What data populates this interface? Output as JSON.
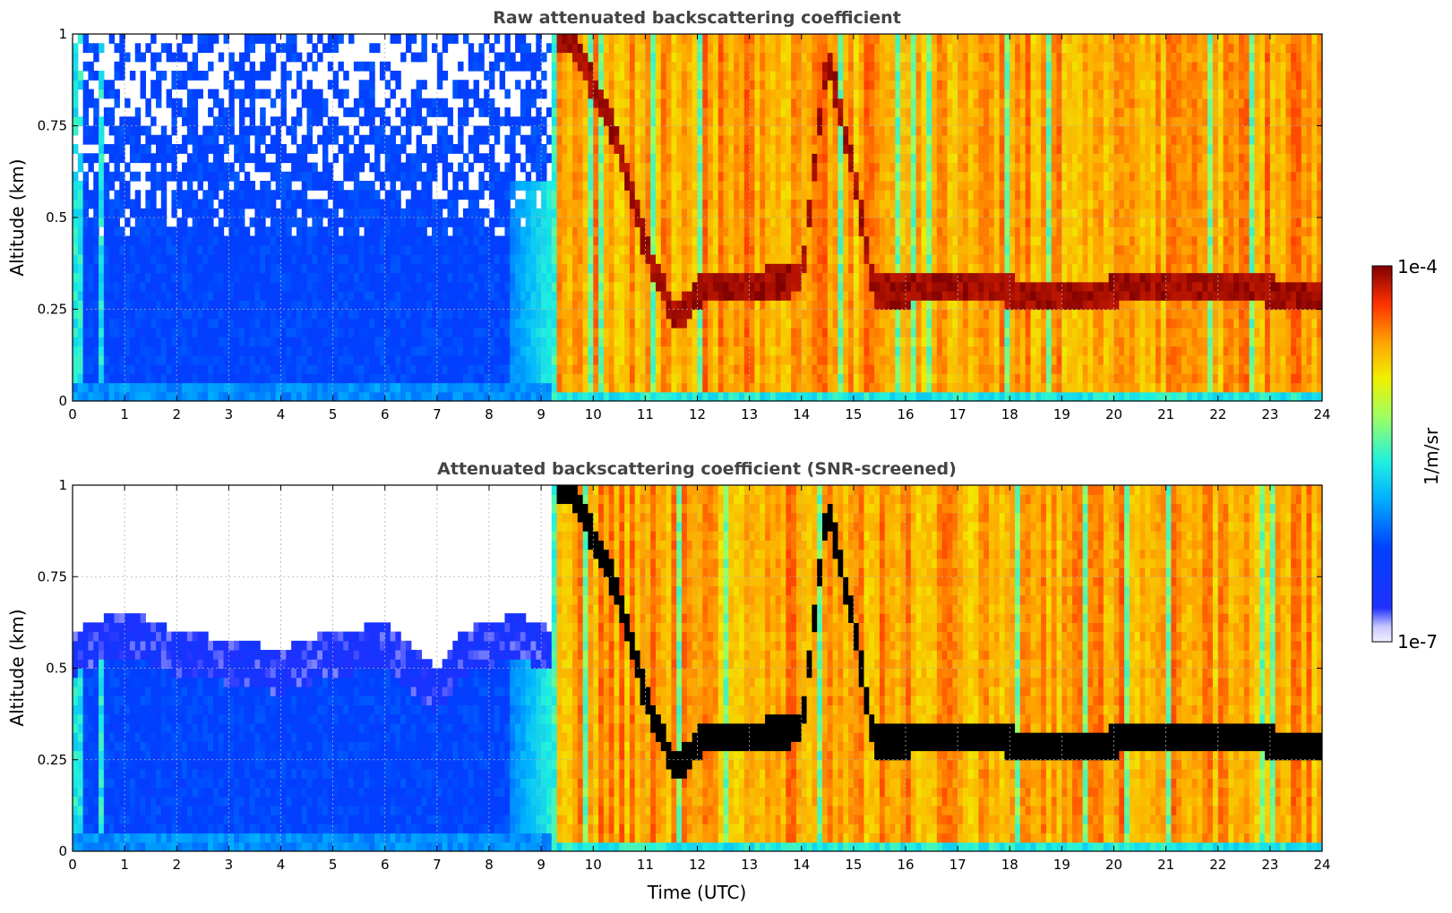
{
  "chart_data": [
    {
      "type": "heatmap",
      "id": "raw",
      "title": "Raw attenuated backscattering coefficient",
      "ylabel": "Altitude (km)",
      "xlabel": "",
      "xlim": [
        0,
        24
      ],
      "ylim": [
        0,
        1
      ],
      "xticks": [
        "0",
        "1",
        "2",
        "3",
        "4",
        "5",
        "6",
        "7",
        "8",
        "9",
        "10",
        "11",
        "12",
        "13",
        "14",
        "15",
        "16",
        "17",
        "18",
        "19",
        "20",
        "21",
        "22",
        "23",
        "24"
      ],
      "yticks": [
        "0",
        "0.25",
        "0.5",
        "0.75",
        "1"
      ],
      "ytick_values": [
        0,
        0.25,
        0.5,
        0.75,
        1
      ],
      "grid": true,
      "regimes": [
        {
          "t_start": 0,
          "t_end": 9.3,
          "description": "noise-dominated, low backscatter (blue) below ~0.4 km, speckled above",
          "log10_beta_near_surface": -6.4
        },
        {
          "t_start": 9.3,
          "t_end": 24,
          "description": "strong backscatter (yellow-orange) with red features",
          "log10_beta_typical": -4.7
        }
      ],
      "layer_top_km": [
        [
          9.6,
          0.99
        ],
        [
          10.5,
          0.7
        ],
        [
          11.0,
          0.42
        ],
        [
          11.6,
          0.22
        ],
        [
          12.0,
          0.3
        ],
        [
          13.0,
          0.32
        ],
        [
          14.0,
          0.33
        ],
        [
          14.5,
          0.95
        ],
        [
          15.0,
          0.62
        ],
        [
          15.4,
          0.3
        ],
        [
          16.0,
          0.3
        ],
        [
          17.0,
          0.32
        ],
        [
          18.0,
          0.3
        ],
        [
          19.0,
          0.28
        ],
        [
          20.0,
          0.3
        ],
        [
          21.0,
          0.32
        ],
        [
          22.0,
          0.32
        ],
        [
          23.0,
          0.3
        ],
        [
          24.0,
          0.28
        ]
      ]
    },
    {
      "type": "heatmap",
      "id": "snr",
      "title": "Attenuated backscattering coefficient (SNR-screened)",
      "ylabel": "Altitude (km)",
      "xlabel": "Time (UTC)",
      "xlim": [
        0,
        24
      ],
      "ylim": [
        0,
        1
      ],
      "xticks": [
        "0",
        "1",
        "2",
        "3",
        "4",
        "5",
        "6",
        "7",
        "8",
        "9",
        "10",
        "11",
        "12",
        "13",
        "14",
        "15",
        "16",
        "17",
        "18",
        "19",
        "20",
        "21",
        "22",
        "23",
        "24"
      ],
      "yticks": [
        "0",
        "0.25",
        "0.5",
        "0.75",
        "1"
      ],
      "ytick_values": [
        0,
        0.25,
        0.5,
        0.75,
        1
      ],
      "grid": true,
      "screened_top_km": [
        [
          0,
          0.6
        ],
        [
          1,
          0.66
        ],
        [
          2,
          0.6
        ],
        [
          3,
          0.58
        ],
        [
          4,
          0.55
        ],
        [
          5,
          0.6
        ],
        [
          6,
          0.62
        ],
        [
          7,
          0.5
        ],
        [
          7.5,
          0.6
        ],
        [
          8.5,
          0.65
        ],
        [
          9.3,
          0.6
        ]
      ],
      "layer_top_km": [
        [
          9.6,
          0.99
        ],
        [
          10.5,
          0.7
        ],
        [
          11.0,
          0.42
        ],
        [
          11.6,
          0.22
        ],
        [
          12.0,
          0.3
        ],
        [
          13.0,
          0.32
        ],
        [
          14.0,
          0.33
        ],
        [
          14.5,
          0.95
        ],
        [
          15.0,
          0.62
        ],
        [
          15.4,
          0.3
        ],
        [
          16.0,
          0.3
        ],
        [
          17.0,
          0.32
        ],
        [
          18.0,
          0.3
        ],
        [
          19.0,
          0.28
        ],
        [
          20.0,
          0.3
        ],
        [
          21.0,
          0.32
        ],
        [
          22.0,
          0.32
        ],
        [
          23.0,
          0.3
        ],
        [
          24.0,
          0.28
        ]
      ]
    }
  ],
  "colorbar": {
    "label": "1/m/sr",
    "max_label": "1e-4",
    "min_label": "1e-7",
    "min_value": 1e-07,
    "max_value": 0.0001,
    "scale": "log",
    "colormap": "jet with white-lavender low end"
  }
}
